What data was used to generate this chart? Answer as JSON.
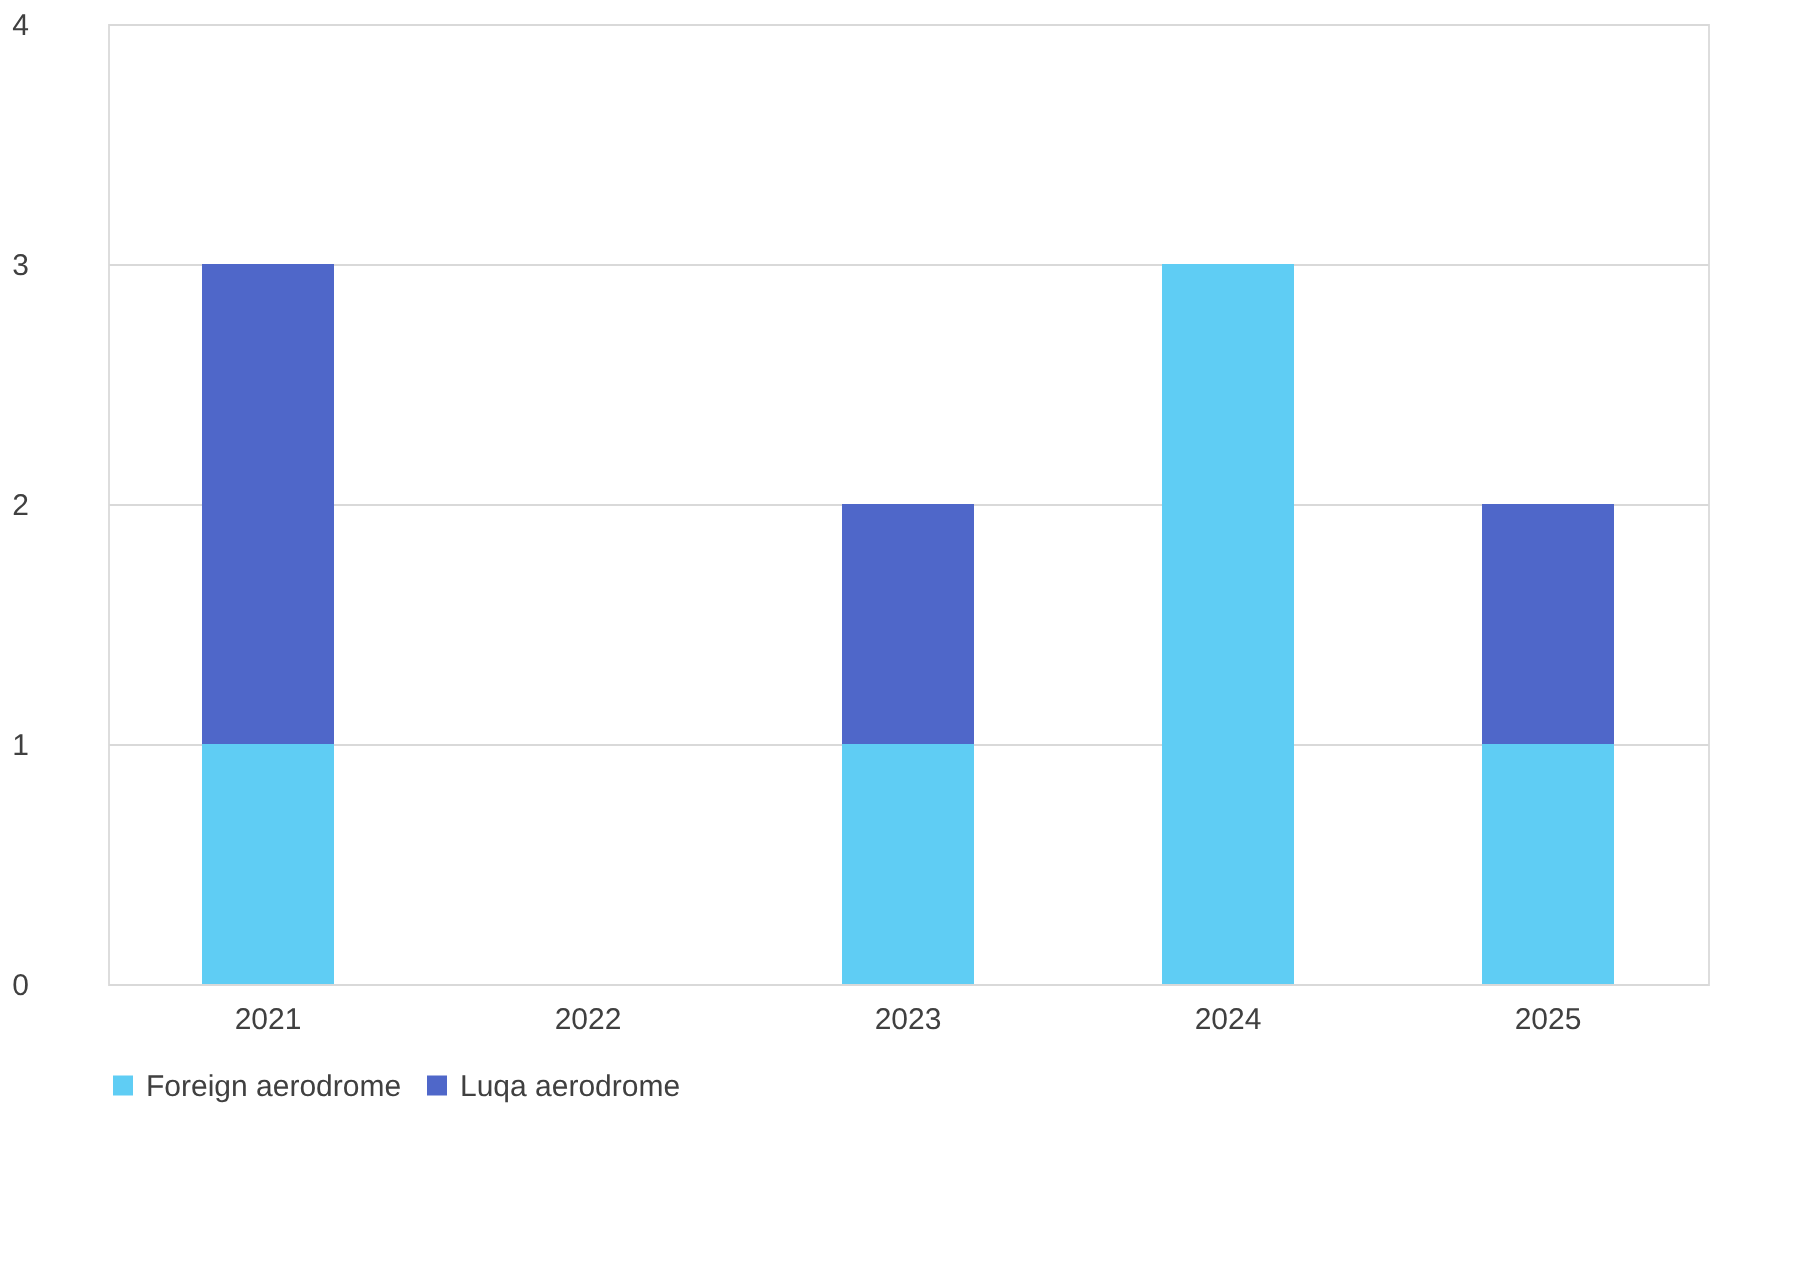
{
  "chart_data": {
    "type": "bar",
    "stacked": true,
    "categories": [
      "2021",
      "2022",
      "2023",
      "2024",
      "2025"
    ],
    "series": [
      {
        "name": "Foreign aerodrome",
        "color": "#5fcdf4",
        "values": [
          1,
          0,
          1,
          3,
          1
        ]
      },
      {
        "name": "Luqa aerodrome",
        "color": "#4f67c9",
        "values": [
          2,
          0,
          1,
          0,
          1
        ]
      }
    ],
    "ylim": [
      0,
      4
    ],
    "yticks": [
      0,
      1,
      2,
      3,
      4
    ],
    "grid": "y",
    "legend": "bottom"
  }
}
